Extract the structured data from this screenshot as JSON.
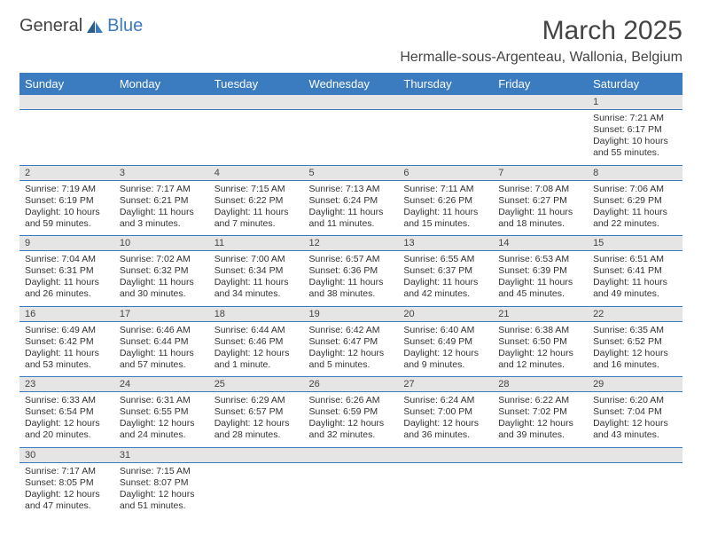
{
  "logo": {
    "part1": "General",
    "part2": "Blue"
  },
  "title": "March 2025",
  "location": "Hermalle-sous-Argenteau, Wallonia, Belgium",
  "colors": {
    "header_bg": "#3b7bbf",
    "daynum_bg": "#e5e5e5",
    "border": "#3b7bbf"
  },
  "weekdays": [
    "Sunday",
    "Monday",
    "Tuesday",
    "Wednesday",
    "Thursday",
    "Friday",
    "Saturday"
  ],
  "weeks": [
    {
      "nums": [
        "",
        "",
        "",
        "",
        "",
        "",
        "1"
      ],
      "cells": [
        null,
        null,
        null,
        null,
        null,
        null,
        {
          "sunrise": "Sunrise: 7:21 AM",
          "sunset": "Sunset: 6:17 PM",
          "day1": "Daylight: 10 hours",
          "day2": "and 55 minutes."
        }
      ]
    },
    {
      "nums": [
        "2",
        "3",
        "4",
        "5",
        "6",
        "7",
        "8"
      ],
      "cells": [
        {
          "sunrise": "Sunrise: 7:19 AM",
          "sunset": "Sunset: 6:19 PM",
          "day1": "Daylight: 10 hours",
          "day2": "and 59 minutes."
        },
        {
          "sunrise": "Sunrise: 7:17 AM",
          "sunset": "Sunset: 6:21 PM",
          "day1": "Daylight: 11 hours",
          "day2": "and 3 minutes."
        },
        {
          "sunrise": "Sunrise: 7:15 AM",
          "sunset": "Sunset: 6:22 PM",
          "day1": "Daylight: 11 hours",
          "day2": "and 7 minutes."
        },
        {
          "sunrise": "Sunrise: 7:13 AM",
          "sunset": "Sunset: 6:24 PM",
          "day1": "Daylight: 11 hours",
          "day2": "and 11 minutes."
        },
        {
          "sunrise": "Sunrise: 7:11 AM",
          "sunset": "Sunset: 6:26 PM",
          "day1": "Daylight: 11 hours",
          "day2": "and 15 minutes."
        },
        {
          "sunrise": "Sunrise: 7:08 AM",
          "sunset": "Sunset: 6:27 PM",
          "day1": "Daylight: 11 hours",
          "day2": "and 18 minutes."
        },
        {
          "sunrise": "Sunrise: 7:06 AM",
          "sunset": "Sunset: 6:29 PM",
          "day1": "Daylight: 11 hours",
          "day2": "and 22 minutes."
        }
      ]
    },
    {
      "nums": [
        "9",
        "10",
        "11",
        "12",
        "13",
        "14",
        "15"
      ],
      "cells": [
        {
          "sunrise": "Sunrise: 7:04 AM",
          "sunset": "Sunset: 6:31 PM",
          "day1": "Daylight: 11 hours",
          "day2": "and 26 minutes."
        },
        {
          "sunrise": "Sunrise: 7:02 AM",
          "sunset": "Sunset: 6:32 PM",
          "day1": "Daylight: 11 hours",
          "day2": "and 30 minutes."
        },
        {
          "sunrise": "Sunrise: 7:00 AM",
          "sunset": "Sunset: 6:34 PM",
          "day1": "Daylight: 11 hours",
          "day2": "and 34 minutes."
        },
        {
          "sunrise": "Sunrise: 6:57 AM",
          "sunset": "Sunset: 6:36 PM",
          "day1": "Daylight: 11 hours",
          "day2": "and 38 minutes."
        },
        {
          "sunrise": "Sunrise: 6:55 AM",
          "sunset": "Sunset: 6:37 PM",
          "day1": "Daylight: 11 hours",
          "day2": "and 42 minutes."
        },
        {
          "sunrise": "Sunrise: 6:53 AM",
          "sunset": "Sunset: 6:39 PM",
          "day1": "Daylight: 11 hours",
          "day2": "and 45 minutes."
        },
        {
          "sunrise": "Sunrise: 6:51 AM",
          "sunset": "Sunset: 6:41 PM",
          "day1": "Daylight: 11 hours",
          "day2": "and 49 minutes."
        }
      ]
    },
    {
      "nums": [
        "16",
        "17",
        "18",
        "19",
        "20",
        "21",
        "22"
      ],
      "cells": [
        {
          "sunrise": "Sunrise: 6:49 AM",
          "sunset": "Sunset: 6:42 PM",
          "day1": "Daylight: 11 hours",
          "day2": "and 53 minutes."
        },
        {
          "sunrise": "Sunrise: 6:46 AM",
          "sunset": "Sunset: 6:44 PM",
          "day1": "Daylight: 11 hours",
          "day2": "and 57 minutes."
        },
        {
          "sunrise": "Sunrise: 6:44 AM",
          "sunset": "Sunset: 6:46 PM",
          "day1": "Daylight: 12 hours",
          "day2": "and 1 minute."
        },
        {
          "sunrise": "Sunrise: 6:42 AM",
          "sunset": "Sunset: 6:47 PM",
          "day1": "Daylight: 12 hours",
          "day2": "and 5 minutes."
        },
        {
          "sunrise": "Sunrise: 6:40 AM",
          "sunset": "Sunset: 6:49 PM",
          "day1": "Daylight: 12 hours",
          "day2": "and 9 minutes."
        },
        {
          "sunrise": "Sunrise: 6:38 AM",
          "sunset": "Sunset: 6:50 PM",
          "day1": "Daylight: 12 hours",
          "day2": "and 12 minutes."
        },
        {
          "sunrise": "Sunrise: 6:35 AM",
          "sunset": "Sunset: 6:52 PM",
          "day1": "Daylight: 12 hours",
          "day2": "and 16 minutes."
        }
      ]
    },
    {
      "nums": [
        "23",
        "24",
        "25",
        "26",
        "27",
        "28",
        "29"
      ],
      "cells": [
        {
          "sunrise": "Sunrise: 6:33 AM",
          "sunset": "Sunset: 6:54 PM",
          "day1": "Daylight: 12 hours",
          "day2": "and 20 minutes."
        },
        {
          "sunrise": "Sunrise: 6:31 AM",
          "sunset": "Sunset: 6:55 PM",
          "day1": "Daylight: 12 hours",
          "day2": "and 24 minutes."
        },
        {
          "sunrise": "Sunrise: 6:29 AM",
          "sunset": "Sunset: 6:57 PM",
          "day1": "Daylight: 12 hours",
          "day2": "and 28 minutes."
        },
        {
          "sunrise": "Sunrise: 6:26 AM",
          "sunset": "Sunset: 6:59 PM",
          "day1": "Daylight: 12 hours",
          "day2": "and 32 minutes."
        },
        {
          "sunrise": "Sunrise: 6:24 AM",
          "sunset": "Sunset: 7:00 PM",
          "day1": "Daylight: 12 hours",
          "day2": "and 36 minutes."
        },
        {
          "sunrise": "Sunrise: 6:22 AM",
          "sunset": "Sunset: 7:02 PM",
          "day1": "Daylight: 12 hours",
          "day2": "and 39 minutes."
        },
        {
          "sunrise": "Sunrise: 6:20 AM",
          "sunset": "Sunset: 7:04 PM",
          "day1": "Daylight: 12 hours",
          "day2": "and 43 minutes."
        }
      ]
    },
    {
      "nums": [
        "30",
        "31",
        "",
        "",
        "",
        "",
        ""
      ],
      "cells": [
        {
          "sunrise": "Sunrise: 7:17 AM",
          "sunset": "Sunset: 8:05 PM",
          "day1": "Daylight: 12 hours",
          "day2": "and 47 minutes."
        },
        {
          "sunrise": "Sunrise: 7:15 AM",
          "sunset": "Sunset: 8:07 PM",
          "day1": "Daylight: 12 hours",
          "day2": "and 51 minutes."
        },
        null,
        null,
        null,
        null,
        null
      ]
    }
  ]
}
